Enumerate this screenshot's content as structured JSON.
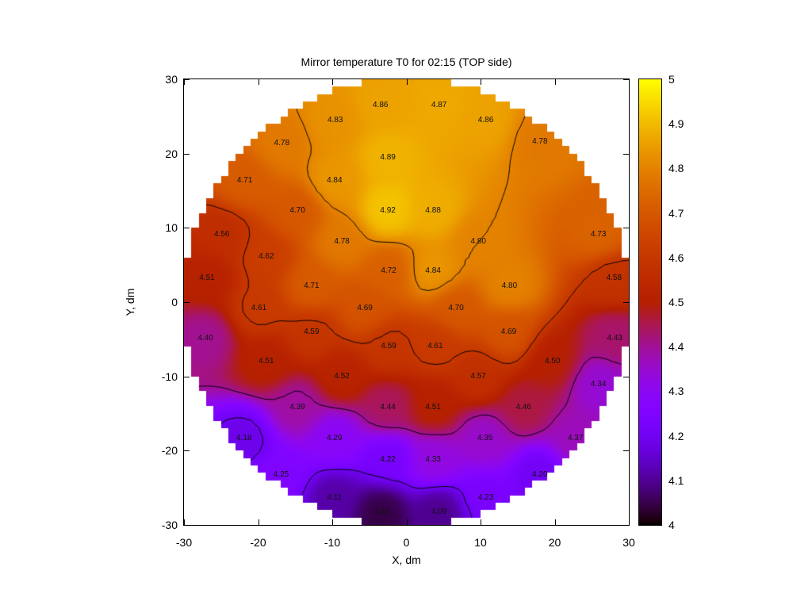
{
  "title": "Mirror temperature T0 for 02:15 (TOP side)",
  "axes": {
    "x": {
      "label": "X, dm",
      "range": [
        -30,
        30
      ],
      "ticks": [
        -30,
        -20,
        -10,
        0,
        10,
        20,
        30
      ]
    },
    "y": {
      "label": "Y, dm",
      "range": [
        -30,
        30
      ],
      "ticks": [
        30,
        20,
        10,
        0,
        -10,
        -20,
        -30
      ]
    }
  },
  "colorbar": {
    "min": 4,
    "max": 5,
    "tick_values": [
      4,
      4.1,
      4.2,
      4.3,
      4.4,
      4.5,
      4.6,
      4.7,
      4.8,
      4.9,
      5
    ],
    "tick_labels": [
      "4",
      "4.1",
      "4.2",
      "4.3",
      "4.4",
      "4.5",
      "4.6",
      "4.7",
      "4.8",
      "4.9",
      "5"
    ],
    "palette": "gnuplot-pm3d black-violet-magenta-red-orange-yellow",
    "palette_endpoints": {
      "low_hex": "#000000",
      "high_hex": "#ffff00"
    }
  },
  "chart_data": {
    "type": "heatmap",
    "title": "Mirror temperature T0 for 02:15 (TOP side)",
    "xlabel": "X, dm",
    "ylabel": "Y, dm",
    "xlim": [
      -30,
      30
    ],
    "ylim": [
      -30,
      30
    ],
    "zlim": [
      4,
      5
    ],
    "grid": false,
    "mask": "circle radius 30 dm, stepped 1 dm cells",
    "contour_levels": [
      4.2,
      4.4,
      4.6,
      4.8
    ],
    "points": [
      {
        "x": -3.5,
        "y": 26.5,
        "v": 4.86
      },
      {
        "x": 4.4,
        "y": 26.5,
        "v": 4.87
      },
      {
        "x": -9.6,
        "y": 24.4,
        "v": 4.83
      },
      {
        "x": 10.7,
        "y": 24.4,
        "v": 4.86
      },
      {
        "x": -16.8,
        "y": 21.3,
        "v": 4.78
      },
      {
        "x": 18.0,
        "y": 21.6,
        "v": 4.78
      },
      {
        "x": -2.5,
        "y": 19.4,
        "v": 4.89
      },
      {
        "x": -21.8,
        "y": 16.3,
        "v": 4.71
      },
      {
        "x": -9.7,
        "y": 16.3,
        "v": 4.84
      },
      {
        "x": -14.7,
        "y": 12.3,
        "v": 4.7
      },
      {
        "x": -2.5,
        "y": 12.3,
        "v": 4.92
      },
      {
        "x": 3.6,
        "y": 12.3,
        "v": 4.88
      },
      {
        "x": -24.9,
        "y": 9.1,
        "v": 4.56
      },
      {
        "x": 25.9,
        "y": 9.1,
        "v": 4.73
      },
      {
        "x": -8.7,
        "y": 8.1,
        "v": 4.78
      },
      {
        "x": 9.7,
        "y": 8.1,
        "v": 4.8
      },
      {
        "x": -18.9,
        "y": 6.1,
        "v": 4.62
      },
      {
        "x": -26.9,
        "y": 3.2,
        "v": 4.51
      },
      {
        "x": 28.0,
        "y": 3.2,
        "v": 4.58
      },
      {
        "x": -2.4,
        "y": 4.2,
        "v": 4.72
      },
      {
        "x": 3.6,
        "y": 4.2,
        "v": 4.84
      },
      {
        "x": -12.8,
        "y": 2.1,
        "v": 4.71
      },
      {
        "x": 13.9,
        "y": 2.1,
        "v": 4.8
      },
      {
        "x": -19.9,
        "y": -0.9,
        "v": 4.61
      },
      {
        "x": -5.6,
        "y": -0.9,
        "v": 4.69
      },
      {
        "x": 6.7,
        "y": -0.9,
        "v": 4.7
      },
      {
        "x": -12.8,
        "y": -4.1,
        "v": 4.59
      },
      {
        "x": 13.8,
        "y": -4.1,
        "v": 4.69
      },
      {
        "x": -27.1,
        "y": -4.9,
        "v": 4.4
      },
      {
        "x": 28.1,
        "y": -4.9,
        "v": 4.43
      },
      {
        "x": -2.4,
        "y": -6.0,
        "v": 4.59
      },
      {
        "x": 3.9,
        "y": -6.0,
        "v": 4.61
      },
      {
        "x": -18.9,
        "y": -8.0,
        "v": 4.51
      },
      {
        "x": 19.7,
        "y": -8.0,
        "v": 4.5
      },
      {
        "x": -8.7,
        "y": -10.0,
        "v": 4.52
      },
      {
        "x": 9.7,
        "y": -10.0,
        "v": 4.57
      },
      {
        "x": 25.9,
        "y": -11.1,
        "v": 4.34
      },
      {
        "x": -14.7,
        "y": -14.2,
        "v": 4.39
      },
      {
        "x": -2.5,
        "y": -14.2,
        "v": 4.44
      },
      {
        "x": 3.6,
        "y": -14.2,
        "v": 4.51
      },
      {
        "x": 15.8,
        "y": -14.2,
        "v": 4.46
      },
      {
        "x": -21.9,
        "y": -18.4,
        "v": 4.18
      },
      {
        "x": -9.7,
        "y": -18.4,
        "v": 4.29
      },
      {
        "x": 10.6,
        "y": -18.4,
        "v": 4.35
      },
      {
        "x": 22.8,
        "y": -18.4,
        "v": 4.37
      },
      {
        "x": -2.5,
        "y": -21.2,
        "v": 4.22
      },
      {
        "x": 3.6,
        "y": -21.2,
        "v": 4.33
      },
      {
        "x": -16.9,
        "y": -23.3,
        "v": 4.25
      },
      {
        "x": 18.0,
        "y": -23.3,
        "v": 4.2
      },
      {
        "x": -9.7,
        "y": -26.4,
        "v": 4.11
      },
      {
        "x": 10.7,
        "y": -26.4,
        "v": 4.23
      },
      {
        "x": -3.4,
        "y": -28.3,
        "v": 4.04
      },
      {
        "x": 4.4,
        "y": -28.3,
        "v": 4.09
      }
    ]
  }
}
